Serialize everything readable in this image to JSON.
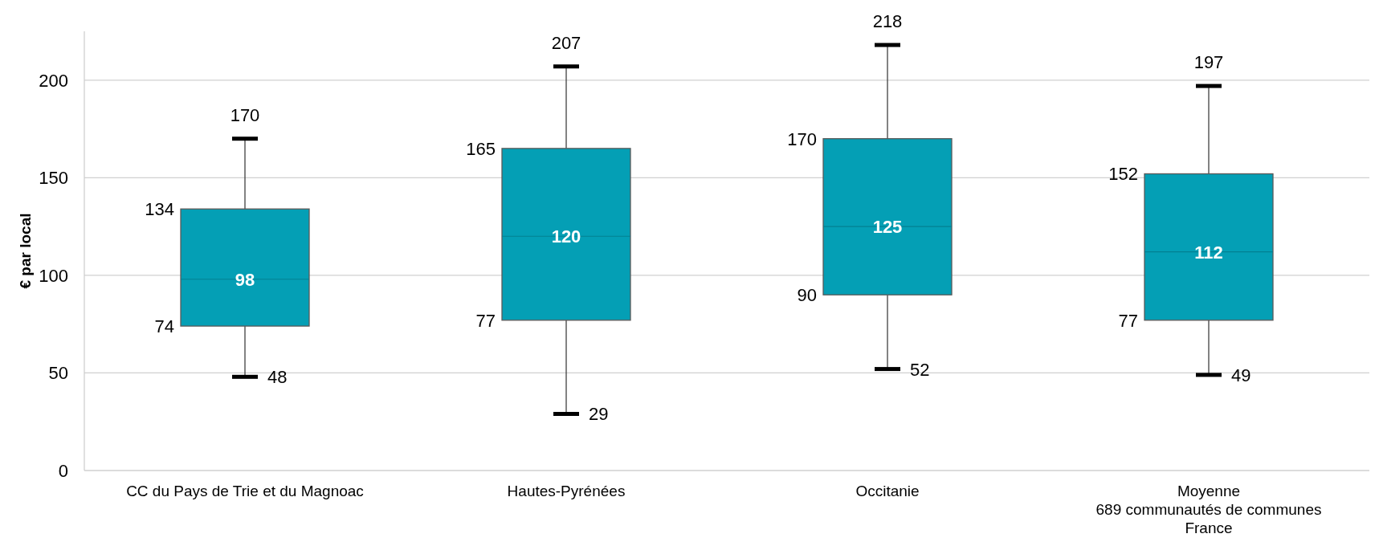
{
  "chart_data": {
    "type": "box",
    "ylabel": "€ par local",
    "categories": [
      "CC du Pays de Trie et du Magnoac",
      "Hautes-Pyrénées",
      "Occitanie",
      "Moyenne\n689 communautés de communes\nFrance"
    ],
    "boxes": [
      {
        "low": 48,
        "q1": 74,
        "median": 98,
        "q3": 134,
        "high": 170
      },
      {
        "low": 29,
        "q1": 77,
        "median": 120,
        "q3": 165,
        "high": 207
      },
      {
        "low": 52,
        "q1": 90,
        "median": 125,
        "q3": 170,
        "high": 218
      },
      {
        "low": 49,
        "q1": 77,
        "median": 112,
        "q3": 152,
        "high": 197
      }
    ],
    "annotations": [
      {
        "text": "170",
        "x": "CC du Pays de Trie et du Magnoac",
        "y": 170
      },
      "134",
      {
        "text": "98",
        "x": "CC du Pays de Trie et du Magnoac",
        "y": 98
      },
      "74",
      {
        "text": "48",
        "x": "CC du Pays de Trie et du Magnoac",
        "y": 48
      },
      {
        "text": "207",
        "x": "Hautes-Pyrénées",
        "y": 207
      },
      "165",
      {
        "text": "120",
        "x": "Hautes-Pyrénées",
        "y": 120
      },
      "77",
      {
        "text": "29",
        "x": "Hautes-Pyrénées",
        "y": 29
      },
      {
        "text": "218",
        "x": "Occitanie",
        "y": 218
      },
      "170",
      {
        "text": "125",
        "x": "Occitanie",
        "y": 125
      },
      "90",
      {
        "text": "52",
        "x": "Occitanie",
        "y": 52
      },
      {
        "text": "197",
        "x": "Moyenne\n689 communautés de communes\nFrance",
        "y": 197
      },
      "152",
      {
        "text": "112",
        "x": "Moyenne\n689 communautés de communes\nFrance",
        "y": 112
      },
      "77",
      {
        "text": "49",
        "x": "Moyenne\n689 communautés de communes\nFrance",
        "y": 49
      }
    ],
    "color": "#049fb5",
    "ylim": [
      0,
      225
    ],
    "yticks": [
      0,
      50,
      100,
      150,
      200
    ],
    "grid": "y"
  }
}
